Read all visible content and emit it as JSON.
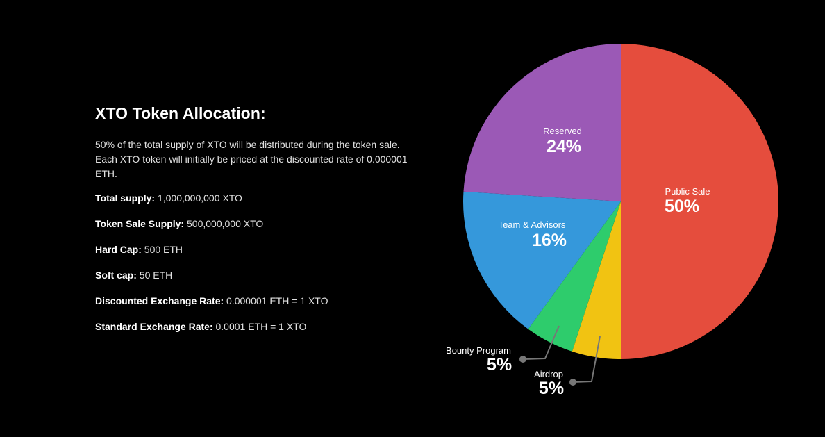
{
  "allocation": {
    "title": "XTO Token Allocation:",
    "description_lines": [
      "50% of the total supply of XTO will be distributed during the token sale.",
      "Each XTO token will initially be priced at the discounted rate of 0.000001",
      "ETH."
    ],
    "specs": [
      {
        "label": "Total supply:",
        "value": "1,000,000,000 XTO"
      },
      {
        "label": "Token Sale Supply:",
        "value": "500,000,000 XTO"
      },
      {
        "label": "Hard Cap:",
        "value": "500 ETH"
      },
      {
        "label": "Soft cap:",
        "value": "50 ETH"
      },
      {
        "label": "Discounted Exchange Rate:",
        "value": "0.000001 ETH = 1 XTO"
      },
      {
        "label": "Standard Exchange Rate:",
        "value": "0.0001 ETH = 1 XTO"
      }
    ]
  },
  "chart_data": {
    "type": "pie",
    "start": "12 o'clock",
    "direction": "clockwise",
    "slices": [
      {
        "name": "Public Sale",
        "value": 50,
        "display": "50%",
        "color": "#e54d3d"
      },
      {
        "name": "Airdrop",
        "value": 5,
        "display": "5%",
        "color": "#f1c312"
      },
      {
        "name": "Bounty Program",
        "value": 5,
        "display": "5%",
        "color": "#2ecc6c"
      },
      {
        "name": "Team & Advisors",
        "value": 16,
        "display": "16%",
        "color": "#3598db"
      },
      {
        "name": "Reserved",
        "value": 24,
        "display": "24%",
        "color": "#9b59b6"
      }
    ],
    "leader_line_color": "#777777"
  }
}
